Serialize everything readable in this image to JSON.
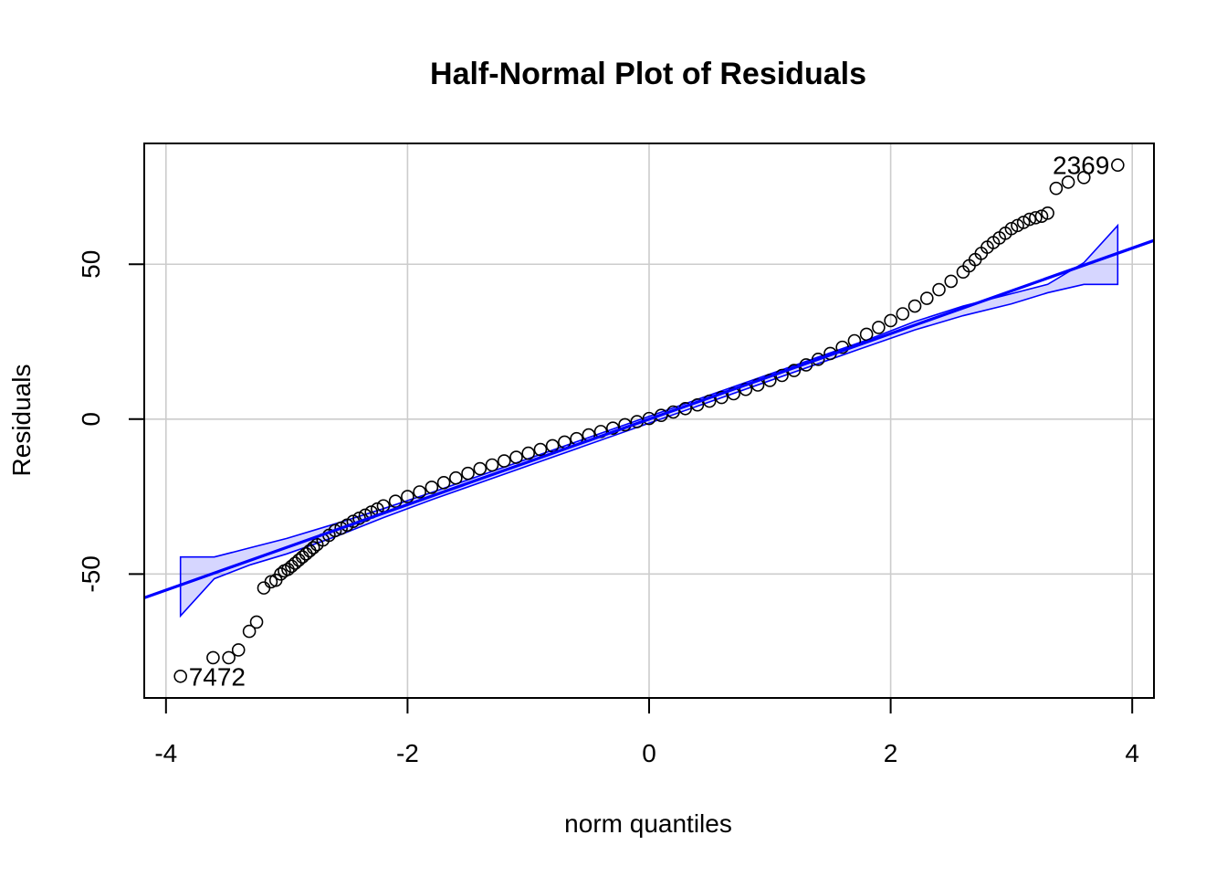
{
  "chart_data": {
    "type": "scatter",
    "title": "Half-Normal Plot of Residuals",
    "xlabel": "norm quantiles",
    "ylabel": "Residuals",
    "xlim": [
      -4.18,
      4.18
    ],
    "ylim": [
      -90,
      89
    ],
    "x_ticks": [
      -4,
      -2,
      0,
      2,
      4
    ],
    "y_ticks": [
      -50,
      0,
      50
    ],
    "grid": true,
    "colors": {
      "points": "#000000",
      "reference": "#0000ff",
      "envelope_fill": "#ccccf5",
      "grid": "#cccccc"
    },
    "reference_line": {
      "intercept": 0,
      "slope": 13.8
    },
    "envelope": {
      "x": [
        -3.88,
        -3.6,
        -3.3,
        -3.0,
        -2.6,
        -2.2,
        -1.8,
        1.8,
        2.2,
        2.6,
        3.0,
        3.3,
        3.6,
        3.88
      ],
      "upper": [
        -44.5,
        -44.5,
        -41.5,
        -38.5,
        -33.8,
        -28.9,
        -23.7,
        25.5,
        31.5,
        36.5,
        40.5,
        43.5,
        50.5,
        62.5
      ],
      "lower": [
        -63.5,
        -51.5,
        -47.0,
        -43.5,
        -38.0,
        -31.8,
        -26.0,
        23.4,
        28.8,
        33.4,
        37.2,
        40.8,
        43.5,
        43.5
      ]
    },
    "points": {
      "x": [
        -3.88,
        -3.61,
        -3.48,
        -3.4,
        -3.31,
        -3.25,
        -3.19,
        -3.13,
        -3.09,
        -3.05,
        -3.02,
        -2.99,
        -2.96,
        -2.93,
        -2.9,
        -2.87,
        -2.84,
        -2.81,
        -2.78,
        -2.75,
        -2.7,
        -2.65,
        -2.6,
        -2.55,
        -2.5,
        -2.45,
        -2.4,
        -2.35,
        -2.3,
        -2.25,
        -2.2,
        -2.1,
        -2.0,
        -1.9,
        -1.8,
        -1.7,
        -1.6,
        -1.5,
        -1.4,
        -1.3,
        -1.2,
        -1.1,
        -1.0,
        -0.9,
        -0.8,
        -0.7,
        -0.6,
        -0.5,
        -0.4,
        -0.3,
        -0.2,
        -0.1,
        0.0,
        0.1,
        0.2,
        0.3,
        0.4,
        0.5,
        0.6,
        0.7,
        0.8,
        0.9,
        1.0,
        1.1,
        1.2,
        1.3,
        1.4,
        1.5,
        1.6,
        1.7,
        1.8,
        1.9,
        2.0,
        2.1,
        2.2,
        2.3,
        2.4,
        2.5,
        2.6,
        2.65,
        2.7,
        2.75,
        2.8,
        2.85,
        2.9,
        2.95,
        3.0,
        3.05,
        3.1,
        3.15,
        3.2,
        3.25,
        3.3,
        3.37,
        3.47,
        3.6,
        3.88
      ],
      "y": [
        -83,
        -77,
        -77,
        -74.5,
        -68.5,
        -65.5,
        -54.5,
        -52.5,
        -52,
        -50,
        -49,
        -48.5,
        -47.5,
        -46.5,
        -45.5,
        -44.5,
        -43.5,
        -42.5,
        -41.5,
        -40.5,
        -39,
        -37.5,
        -36,
        -35.2,
        -34.2,
        -33,
        -32,
        -31,
        -30,
        -29,
        -28,
        -26.5,
        -25,
        -23.5,
        -22,
        -20.5,
        -19,
        -17.5,
        -16,
        -14.8,
        -13.5,
        -12.3,
        -11,
        -9.8,
        -8.6,
        -7.4,
        -6.3,
        -5.1,
        -4.0,
        -2.9,
        -1.8,
        -0.8,
        0.2,
        1.2,
        2.3,
        3.4,
        4.6,
        5.8,
        7.0,
        8.2,
        9.6,
        11.0,
        12.5,
        14.1,
        15.7,
        17.5,
        19.3,
        21.2,
        23.2,
        25.3,
        27.4,
        29.6,
        31.8,
        34.0,
        36.5,
        39.0,
        41.8,
        44.5,
        47.5,
        49.5,
        51.5,
        53.5,
        55.5,
        57.0,
        58.5,
        60.0,
        61.5,
        62.5,
        63.5,
        64.5,
        65.0,
        65.5,
        66.5,
        74.5,
        76.5,
        78.0,
        82.0
      ]
    },
    "annotations": [
      {
        "text": "2369",
        "x": 3.88,
        "y": 82.0
      },
      {
        "text": "7472",
        "x": -3.88,
        "y": -83.0
      }
    ]
  }
}
